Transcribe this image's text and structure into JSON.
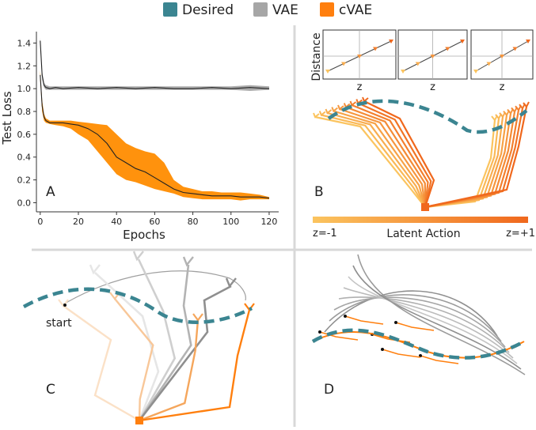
{
  "legend": [
    {
      "label": "Desired",
      "color": "#3b8591"
    },
    {
      "label": "VAE",
      "color": "#a6a6a6"
    },
    {
      "label": "cVAE",
      "color": "#ff7f0e"
    }
  ],
  "panels": {
    "A": {
      "label": "A"
    },
    "B": {
      "label": "B",
      "colorbar": {
        "title": "Latent Action",
        "left_label": "z=-1",
        "right_label": "z=+1",
        "colors": [
          "#fbc45f",
          "#f0681d"
        ]
      },
      "insets": {
        "ylabel": "Distance",
        "xlabel": "z"
      }
    },
    "C": {
      "label": "C",
      "annotation": "start"
    },
    "D": {
      "label": "D"
    }
  },
  "colors": {
    "desired": "#3b8591",
    "vae": "#9a9a9a",
    "cvae": "#ff7f0e",
    "cvae_band": "#ff8c00",
    "mean": "#222222"
  },
  "chart_data": [
    {
      "type": "line",
      "panel": "A",
      "title": "",
      "xlabel": "Epochs",
      "ylabel": "Test Loss",
      "xlim": [
        -2,
        125
      ],
      "ylim": [
        -0.08,
        1.5
      ],
      "xticks": [
        0,
        20,
        40,
        60,
        80,
        100,
        120
      ],
      "yticks": [
        0.0,
        0.2,
        0.4,
        0.6,
        0.8,
        1.0,
        1.2,
        1.4
      ],
      "series": [
        {
          "name": "VAE",
          "x": [
            0,
            1,
            2,
            3,
            5,
            8,
            12,
            20,
            30,
            40,
            50,
            60,
            70,
            80,
            90,
            100,
            110,
            120
          ],
          "y": [
            1.42,
            1.12,
            1.03,
            1.01,
            1.0,
            1.01,
            1.0,
            1.01,
            1.0,
            1.01,
            1.0,
            1.01,
            1.0,
            1.0,
            1.01,
            1.0,
            1.01,
            1.0
          ],
          "lower": [
            1.38,
            1.08,
            1.01,
            0.99,
            0.99,
            0.99,
            0.99,
            0.99,
            0.99,
            0.99,
            0.99,
            0.99,
            0.99,
            0.99,
            0.99,
            0.99,
            0.98,
            0.99
          ],
          "upper": [
            1.45,
            1.15,
            1.05,
            1.03,
            1.02,
            1.02,
            1.02,
            1.02,
            1.02,
            1.02,
            1.02,
            1.02,
            1.02,
            1.02,
            1.02,
            1.02,
            1.03,
            1.02
          ]
        },
        {
          "name": "cVAE",
          "x": [
            0,
            1,
            2,
            3,
            5,
            8,
            12,
            16,
            20,
            25,
            30,
            35,
            40,
            45,
            50,
            55,
            60,
            65,
            70,
            75,
            80,
            85,
            90,
            95,
            100,
            105,
            110,
            115,
            120
          ],
          "y": [
            1.12,
            0.85,
            0.75,
            0.72,
            0.7,
            0.7,
            0.7,
            0.69,
            0.68,
            0.65,
            0.6,
            0.52,
            0.4,
            0.35,
            0.3,
            0.27,
            0.22,
            0.17,
            0.12,
            0.09,
            0.08,
            0.07,
            0.06,
            0.06,
            0.06,
            0.05,
            0.05,
            0.05,
            0.04
          ],
          "lower": [
            1.08,
            0.8,
            0.72,
            0.7,
            0.69,
            0.68,
            0.67,
            0.65,
            0.6,
            0.55,
            0.45,
            0.35,
            0.25,
            0.2,
            0.18,
            0.15,
            0.12,
            0.1,
            0.08,
            0.05,
            0.04,
            0.03,
            0.03,
            0.03,
            0.03,
            0.02,
            0.03,
            0.03,
            0.03
          ],
          "upper": [
            1.16,
            0.9,
            0.78,
            0.74,
            0.72,
            0.72,
            0.72,
            0.72,
            0.71,
            0.7,
            0.69,
            0.68,
            0.6,
            0.52,
            0.48,
            0.45,
            0.43,
            0.35,
            0.2,
            0.14,
            0.12,
            0.1,
            0.1,
            0.09,
            0.09,
            0.09,
            0.08,
            0.07,
            0.05
          ]
        }
      ]
    }
  ]
}
